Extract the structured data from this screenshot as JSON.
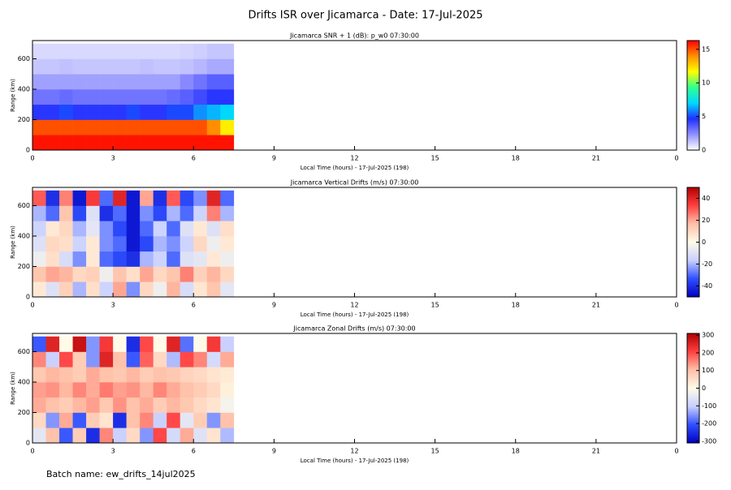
{
  "title": "Drifts ISR over Jicamarca - Date: 17-Jul-2025",
  "footer": "Batch name: ew_drifts_14jul2025",
  "chart_data": [
    {
      "type": "heatmap",
      "title": "Jicamarca SNR + 1 (dB): p_w0 07:30:00",
      "x_label": "Local Time (hours) - 17-Jul-2025 (198)",
      "y_label": "Range (km)",
      "x": [
        0,
        0.5,
        1,
        1.5,
        2,
        2.5,
        3,
        3.5,
        4,
        4.5,
        5,
        5.5,
        6,
        6.5,
        7,
        7.5
      ],
      "y": [
        0,
        100,
        200,
        300,
        400,
        500,
        600,
        700
      ],
      "values": [
        [
          16,
          16,
          16,
          16,
          16,
          16,
          16,
          16,
          16,
          16,
          16,
          16,
          16,
          16,
          16
        ],
        [
          15,
          15,
          15,
          15,
          15,
          15,
          15,
          15,
          15,
          15,
          15,
          15,
          15,
          14,
          12
        ],
        [
          4.5,
          4.5,
          5,
          4.5,
          4.5,
          4.5,
          4.5,
          5,
          4.5,
          4.5,
          5,
          5,
          6,
          6.5,
          7
        ],
        [
          3,
          3,
          3.2,
          3,
          3,
          3,
          3,
          3,
          3,
          3,
          3.2,
          3.5,
          4,
          4.5,
          4.5
        ],
        [
          2,
          2,
          2,
          2,
          2,
          2,
          2,
          2,
          2,
          2,
          2,
          2.5,
          3,
          3.5,
          3.5
        ],
        [
          1.2,
          1.2,
          1.3,
          1.2,
          1.2,
          1.2,
          1.2,
          1.2,
          1.3,
          1.2,
          1.2,
          1.3,
          1.5,
          1.8,
          1.8
        ],
        [
          0.8,
          0.8,
          0.8,
          0.8,
          0.8,
          0.8,
          0.8,
          0.8,
          0.8,
          0.8,
          0.8,
          0.9,
          1,
          1.2,
          1.2
        ]
      ],
      "xlim": [
        0,
        24
      ],
      "xticks": [
        0,
        3,
        6,
        9,
        12,
        15,
        18,
        21,
        {
          "value": 24,
          "label": "0"
        }
      ],
      "ylim": [
        0,
        720
      ],
      "yticks": [
        0,
        200,
        400,
        600
      ],
      "zlim": [
        0,
        16.3
      ],
      "zticks": [
        0,
        5,
        10,
        15
      ],
      "colors": [
        "#ffffff",
        "#9090ff",
        "#2030ff",
        "#00d8ff",
        "#30ff90",
        "#ffff00",
        "#ff9000",
        "#ff0000"
      ]
    },
    {
      "type": "heatmap",
      "title": "Jicamarca Vertical Drifts (m/s) 07:30:00",
      "x_label": "Local Time (hours) - 17-Jul-2025 (198)",
      "y_label": "Range (km)",
      "x": [
        0,
        0.5,
        1,
        1.5,
        2,
        2.5,
        3,
        3.5,
        4,
        4.5,
        5,
        5.5,
        6,
        6.5,
        7,
        7.5
      ],
      "y": [
        0,
        100,
        200,
        300,
        400,
        500,
        600,
        700
      ],
      "values": [
        [
          5,
          -10,
          12,
          -20,
          8,
          -15,
          20,
          -25,
          10,
          -5,
          18,
          -12,
          6,
          15,
          -8
        ],
        [
          15,
          20,
          18,
          10,
          12,
          -5,
          15,
          8,
          20,
          10,
          15,
          25,
          12,
          18,
          10
        ],
        [
          -5,
          8,
          -12,
          -25,
          5,
          -30,
          -35,
          -40,
          -20,
          -15,
          -30,
          -10,
          -8,
          5,
          -5
        ],
        [
          -10,
          10,
          8,
          -15,
          5,
          -25,
          -30,
          -45,
          -35,
          -20,
          -25,
          -15,
          10,
          -5,
          5
        ],
        [
          -15,
          5,
          10,
          -20,
          -8,
          -25,
          -35,
          -45,
          -30,
          -15,
          -30,
          -10,
          5,
          -10,
          8
        ],
        [
          -20,
          -30,
          15,
          -35,
          -10,
          -40,
          -30,
          -45,
          -25,
          -35,
          -20,
          -30,
          -15,
          25,
          -20
        ],
        [
          30,
          -40,
          25,
          -45,
          35,
          -30,
          40,
          -45,
          20,
          -40,
          30,
          -35,
          -25,
          40,
          -30
        ]
      ],
      "xlim": [
        0,
        24
      ],
      "xticks": [
        0,
        3,
        6,
        9,
        12,
        15,
        18,
        21,
        {
          "value": 24,
          "label": "0"
        }
      ],
      "ylim": [
        0,
        720
      ],
      "yticks": [
        0,
        200,
        400,
        600
      ],
      "zlim": [
        -50,
        50
      ],
      "zticks": [
        -40,
        -20,
        0,
        20,
        40
      ],
      "colors": [
        "#0000c0",
        "#3050ff",
        "#c8d0ff",
        "#fffbe8",
        "#ffc0a8",
        "#ff4040",
        "#b00000"
      ]
    },
    {
      "type": "heatmap",
      "title": "Jicamarca Zonal Drifts (m/s) 07:30:00",
      "x_label": "Local Time (hours) - 17-Jul-2025 (198)",
      "y_label": "Range (km)",
      "x": [
        0,
        0.5,
        1,
        1.5,
        2,
        2.5,
        3,
        3.5,
        4,
        4.5,
        5,
        5.5,
        6,
        6.5,
        7,
        7.5
      ],
      "y": [
        0,
        100,
        200,
        300,
        400,
        500,
        600,
        700
      ],
      "values": [
        [
          -50,
          100,
          -200,
          80,
          -250,
          150,
          -100,
          60,
          -150,
          200,
          -80,
          120,
          -60,
          40,
          -120
        ],
        [
          60,
          -150,
          120,
          -200,
          80,
          40,
          -250,
          100,
          150,
          -100,
          200,
          -50,
          80,
          -150,
          100
        ],
        [
          120,
          100,
          80,
          110,
          130,
          90,
          140,
          100,
          120,
          80,
          110,
          90,
          60,
          40,
          -20
        ],
        [
          130,
          140,
          110,
          150,
          120,
          160,
          130,
          140,
          110,
          150,
          120,
          100,
          80,
          60,
          20
        ],
        [
          90,
          110,
          100,
          80,
          120,
          100,
          90,
          110,
          80,
          100,
          90,
          70,
          60,
          40,
          30
        ],
        [
          150,
          -100,
          200,
          80,
          -150,
          250,
          100,
          -200,
          180,
          60,
          -120,
          200,
          150,
          -80,
          120
        ],
        [
          -200,
          250,
          0,
          280,
          -150,
          220,
          0,
          -250,
          200,
          0,
          250,
          -180,
          0,
          220,
          -100
        ]
      ],
      "xlim": [
        0,
        24
      ],
      "xticks": [
        0,
        3,
        6,
        9,
        12,
        15,
        18,
        21,
        {
          "value": 24,
          "label": "0"
        }
      ],
      "ylim": [
        0,
        720
      ],
      "yticks": [
        0,
        200,
        400,
        600
      ],
      "zlim": [
        -310,
        310
      ],
      "zticks": [
        -300,
        -200,
        -100,
        0,
        100,
        200,
        300
      ],
      "colors": [
        "#0000c0",
        "#3050ff",
        "#c8d0ff",
        "#fffbe8",
        "#ffc0a8",
        "#ff4040",
        "#b00000"
      ]
    }
  ]
}
